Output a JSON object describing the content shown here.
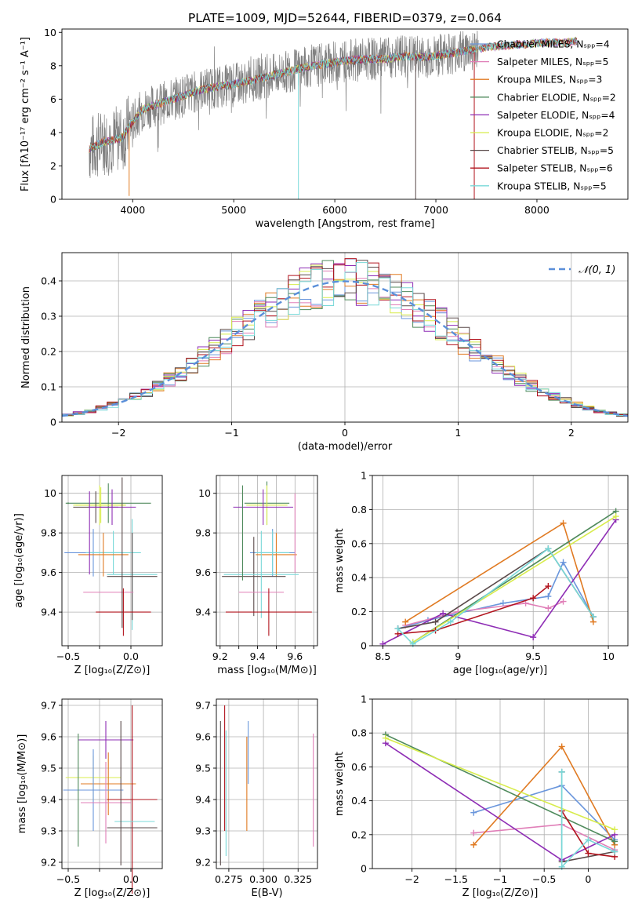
{
  "title": "PLATE=1009, MJD=52644, FIBERID=0379, z=0.064",
  "colors": [
    "#6a96dc",
    "#e07fb8",
    "#e07a22",
    "#4f8a5c",
    "#8e2db5",
    "#d8ec4c",
    "#5a4a4a",
    "#b2141e",
    "#78d8d8"
  ],
  "legend": [
    "Chabrier MILES, Nₛₚₚ=4",
    "Salpeter MILES, Nₛₚₚ=5",
    "Kroupa MILES, Nₛₚₚ=3",
    "Chabrier ELODIE, Nₛₚₚ=2",
    "Salpeter ELODIE, Nₛₚₚ=4",
    "Kroupa ELODIE, Nₛₚₚ=2",
    "Chabrier STELIB, Nₛₚₚ=5",
    "Salpeter STELIB, Nₛₚₚ=6",
    "Kroupa STELIB, Nₛₚₚ=5"
  ],
  "chart_data": [
    {
      "id": "spectrum",
      "type": "line",
      "title": "PLATE=1009, MJD=52644, FIBERID=0379, z=0.064",
      "xlabel": "wavelength [Angstrom, rest frame]",
      "ylabel": "Flux [fλ10⁻¹⁷ erg cm⁻² s⁻¹ A⁻¹]",
      "xlim": [
        3300,
        8900
      ],
      "ylim": [
        0,
        10.2
      ],
      "xticks": [
        4000,
        5000,
        6000,
        7000,
        8000
      ],
      "yticks": [
        0,
        2,
        4,
        6,
        8,
        10
      ],
      "data_color": "#808080",
      "continuum": [
        [
          3570,
          3.0
        ],
        [
          3700,
          3.4
        ],
        [
          3900,
          3.7
        ],
        [
          3960,
          4.3
        ],
        [
          4100,
          5.4
        ],
        [
          4300,
          5.8
        ],
        [
          4500,
          6.2
        ],
        [
          4700,
          6.6
        ],
        [
          4900,
          6.8
        ],
        [
          5100,
          7.0
        ],
        [
          5300,
          7.3
        ],
        [
          5500,
          7.6
        ],
        [
          5700,
          7.9
        ],
        [
          5900,
          8.1
        ],
        [
          6100,
          8.3
        ],
        [
          6300,
          8.4
        ],
        [
          6500,
          8.4
        ],
        [
          6700,
          8.6
        ],
        [
          6900,
          8.5
        ],
        [
          7100,
          8.7
        ],
        [
          7300,
          8.9
        ],
        [
          7500,
          9.1
        ],
        [
          7700,
          9.2
        ],
        [
          7900,
          9.3
        ],
        [
          8100,
          9.4
        ],
        [
          8300,
          9.4
        ],
        [
          8400,
          9.5
        ]
      ],
      "data_range": [
        3570,
        7420
      ],
      "model_range": [
        3570,
        8400
      ],
      "legend_position": "right"
    },
    {
      "id": "residuals",
      "type": "histogram",
      "xlabel": "(data-model)/error",
      "ylabel": "Normed distribution",
      "xlim": [
        -2.5,
        2.5
      ],
      "ylim": [
        0,
        0.48
      ],
      "xticks": [
        -2,
        -1,
        0,
        1,
        2
      ],
      "yticks": [
        0.0,
        0.1,
        0.2,
        0.3,
        0.4
      ],
      "bin_width": 0.1,
      "reference_curve": "𝒩(0, 1)",
      "reference_color": "#5b8fd9",
      "legend_position": "top-right"
    },
    {
      "id": "age-vs-z",
      "type": "errorbar",
      "xlabel": "Z [log₁₀(Z/Z⊙)]",
      "ylabel": "age  [log₁₀(age/yr)]",
      "xlim": [
        -0.55,
        0.25
      ],
      "ylim": [
        9.23,
        10.09
      ],
      "xticks": [
        -0.5,
        -0.25,
        0.0
      ],
      "xticklabels": [
        "−0.5",
        "",
        "0.0"
      ],
      "yticks": [
        9.4,
        9.6,
        9.8,
        10.0
      ],
      "points": [
        {
          "x": -0.5,
          "y": 9.95,
          "ex": 0.0,
          "ey": 0.0,
          "c": 3
        },
        {
          "x": -0.18,
          "y": 9.95,
          "ex": 0.34,
          "ey": 0.1,
          "c": 3
        },
        {
          "x": -0.24,
          "y": 9.94,
          "ex": 0.2,
          "ey": 0.09,
          "c": 5
        },
        {
          "x": -0.25,
          "y": 9.94,
          "ex": 0.21,
          "ey": 0.1,
          "c": 5
        },
        {
          "x": -0.28,
          "y": 9.93,
          "ex": 0.18,
          "ey": 0.08,
          "c": 6
        },
        {
          "x": -0.15,
          "y": 9.93,
          "ex": 0.19,
          "ey": 0.09,
          "c": 4
        },
        {
          "x": -0.3,
          "y": 9.7,
          "ex": 0.23,
          "ey": 0.12,
          "c": 0
        },
        {
          "x": -0.14,
          "y": 9.7,
          "ex": 0.22,
          "ey": 0.11,
          "c": 8
        },
        {
          "x": -0.22,
          "y": 9.69,
          "ex": 0.2,
          "ey": 0.11,
          "c": 2
        },
        {
          "x": 0.01,
          "y": 9.59,
          "ex": 0.2,
          "ey": 0.28,
          "c": 8
        },
        {
          "x": 0.01,
          "y": 9.58,
          "ex": 0.2,
          "ey": 0.22,
          "c": 6
        },
        {
          "x": -0.18,
          "y": 9.5,
          "ex": 0.2,
          "ey": 0.0,
          "c": 1
        },
        {
          "x": -0.06,
          "y": 9.4,
          "ex": 0.22,
          "ey": 0.12,
          "c": 7
        },
        {
          "x": -0.33,
          "y": 9.8,
          "ex": 0.0,
          "ey": 0.21,
          "c": 4
        },
        {
          "x": -0.07,
          "y": 9.7,
          "ex": 0.0,
          "ey": 0.38,
          "c": 6
        }
      ]
    },
    {
      "id": "age-vs-mass",
      "type": "errorbar",
      "xlabel": "mass [log₁₀(M/M⊙)]",
      "ylabel": "",
      "xlim": [
        9.18,
        9.72
      ],
      "ylim": [
        9.23,
        10.09
      ],
      "xticks": [
        9.2,
        9.3,
        9.4,
        9.5,
        9.6,
        9.7
      ],
      "xticklabels": [
        "9.2",
        "",
        "9.4",
        "",
        "9.6",
        ""
      ],
      "yticks": [
        9.4,
        9.6,
        9.8,
        10.0
      ],
      "points": [
        {
          "x": 9.45,
          "y": 9.95,
          "ex": 0.12,
          "ey": 0.11,
          "c": 3
        },
        {
          "x": 9.45,
          "y": 9.94,
          "ex": 0.11,
          "ey": 0.1,
          "c": 5
        },
        {
          "x": 9.43,
          "y": 9.93,
          "ex": 0.16,
          "ey": 0.09,
          "c": 4
        },
        {
          "x": 9.48,
          "y": 9.7,
          "ex": 0.12,
          "ey": 0.12,
          "c": 0
        },
        {
          "x": 9.5,
          "y": 9.69,
          "ex": 0.11,
          "ey": 0.11,
          "c": 2
        },
        {
          "x": 9.48,
          "y": 9.7,
          "ex": 0.09,
          "ey": 0.11,
          "c": 8
        },
        {
          "x": 9.38,
          "y": 9.58,
          "ex": 0.17,
          "ey": 0.2,
          "c": 6
        },
        {
          "x": 9.42,
          "y": 9.59,
          "ex": 0.2,
          "ey": 0.22,
          "c": 8
        },
        {
          "x": 9.42,
          "y": 9.5,
          "ex": 0.12,
          "ey": 0.0,
          "c": 1
        },
        {
          "x": 9.46,
          "y": 9.4,
          "ex": 0.23,
          "ey": 0.12,
          "c": 7
        },
        {
          "x": 9.32,
          "y": 9.8,
          "ex": 0.0,
          "ey": 0.24,
          "c": 3
        },
        {
          "x": 9.6,
          "y": 9.8,
          "ex": 0.0,
          "ey": 0.2,
          "c": 1
        }
      ]
    },
    {
      "id": "weight-vs-age",
      "type": "line",
      "xlabel": "age  [log₁₀(age/yr)]",
      "ylabel": "mass weight",
      "xlim": [
        8.43,
        10.13
      ],
      "ylim": [
        0,
        1.0
      ],
      "xticks": [
        8.5,
        9.0,
        9.5,
        10.0
      ],
      "yticks": [
        0.0,
        0.2,
        0.4,
        0.6,
        0.8,
        1.0
      ],
      "series": [
        {
          "c": 0,
          "points": [
            [
              8.6,
              0.1
            ],
            [
              8.8,
              0.15
            ],
            [
              9.3,
              0.25
            ],
            [
              9.6,
              0.29
            ],
            [
              9.7,
              0.49
            ],
            [
              9.9,
              0.17
            ]
          ]
        },
        {
          "c": 1,
          "points": [
            [
              8.65,
              0.12
            ],
            [
              9.0,
              0.2
            ],
            [
              9.45,
              0.25
            ],
            [
              9.6,
              0.22
            ],
            [
              9.7,
              0.26
            ]
          ]
        },
        {
          "c": 2,
          "points": [
            [
              8.65,
              0.14
            ],
            [
              9.7,
              0.72
            ],
            [
              9.9,
              0.14
            ]
          ]
        },
        {
          "c": 3,
          "points": [
            [
              8.7,
              0.02
            ],
            [
              10.05,
              0.79
            ]
          ]
        },
        {
          "c": 4,
          "points": [
            [
              8.5,
              0.01
            ],
            [
              8.9,
              0.19
            ],
            [
              9.5,
              0.05
            ],
            [
              10.05,
              0.74
            ]
          ]
        },
        {
          "c": 5,
          "points": [
            [
              8.7,
              0.02
            ],
            [
              10.05,
              0.76
            ]
          ]
        },
        {
          "c": 6,
          "points": [
            [
              8.6,
              0.1
            ],
            [
              8.85,
              0.14
            ],
            [
              9.6,
              0.57
            ],
            [
              9.9,
              0.17
            ]
          ]
        },
        {
          "c": 7,
          "points": [
            [
              8.6,
              0.07
            ],
            [
              8.85,
              0.09
            ],
            [
              9.5,
              0.28
            ],
            [
              9.6,
              0.35
            ]
          ]
        },
        {
          "c": 8,
          "points": [
            [
              8.6,
              0.1
            ],
            [
              8.7,
              0.01
            ],
            [
              8.95,
              0.14
            ],
            [
              9.6,
              0.57
            ],
            [
              9.9,
              0.17
            ]
          ]
        }
      ]
    },
    {
      "id": "mass-vs-z",
      "type": "errorbar",
      "xlabel": "Z [log₁₀(Z/Z⊙)]",
      "ylabel": "mass [log₁₀(M/M⊙)]",
      "xlim": [
        -0.55,
        0.25
      ],
      "ylim": [
        9.18,
        9.72
      ],
      "xticks": [
        -0.5,
        -0.25,
        0.0
      ],
      "xticklabels": [
        "−0.5",
        "",
        "0.0"
      ],
      "yticks": [
        9.2,
        9.3,
        9.4,
        9.5,
        9.6,
        9.7
      ],
      "points": [
        {
          "x": -0.2,
          "y": 9.59,
          "ex": 0.22,
          "ey": 0.06,
          "c": 4
        },
        {
          "x": -0.3,
          "y": 9.47,
          "ex": 0.22,
          "ey": 0.07,
          "c": 5
        },
        {
          "x": -0.18,
          "y": 9.45,
          "ex": 0.22,
          "ey": 0.1,
          "c": 2
        },
        {
          "x": -0.3,
          "y": 9.43,
          "ex": 0.24,
          "ey": 0.13,
          "c": 0
        },
        {
          "x": -0.2,
          "y": 9.39,
          "ex": 0.2,
          "ey": 0.13,
          "c": 1
        },
        {
          "x": 0.01,
          "y": 9.4,
          "ex": 0.2,
          "ey": 0.3,
          "c": 7
        },
        {
          "x": 0.03,
          "y": 9.33,
          "ex": 0.16,
          "ey": 0.0,
          "c": 8
        },
        {
          "x": 0.01,
          "y": 9.31,
          "ex": 0.2,
          "ey": 0.0,
          "c": 6
        },
        {
          "x": -0.42,
          "y": 9.43,
          "ex": 0.0,
          "ey": 0.18,
          "c": 3
        },
        {
          "x": -0.08,
          "y": 9.42,
          "ex": 0.0,
          "ey": 0.23,
          "c": 6
        }
      ]
    },
    {
      "id": "mass-vs-ebv",
      "type": "errorbar",
      "xlabel": "E(B-V)",
      "ylabel": "",
      "xlim": [
        0.266,
        0.339
      ],
      "ylim": [
        9.18,
        9.72
      ],
      "xticks": [
        0.275,
        0.3,
        0.325
      ],
      "xticklabels": [
        "0.275",
        "0.300",
        "0.325"
      ],
      "yticks": [
        9.2,
        9.3,
        9.4,
        9.5,
        9.6,
        9.7
      ],
      "points": [
        {
          "x": 0.269,
          "y": 9.42,
          "ex": 0,
          "ey": 0.23,
          "c": 6
        },
        {
          "x": 0.272,
          "y": 9.5,
          "ex": 0,
          "ey": 0.2,
          "c": 7
        },
        {
          "x": 0.273,
          "y": 9.42,
          "ex": 0,
          "ey": 0.2,
          "c": 8
        },
        {
          "x": 0.288,
          "y": 9.45,
          "ex": 0,
          "ey": 0.15,
          "c": 2
        },
        {
          "x": 0.289,
          "y": 9.55,
          "ex": 0,
          "ey": 0.1,
          "c": 0
        },
        {
          "x": 0.336,
          "y": 9.43,
          "ex": 0,
          "ey": 0.18,
          "c": 1
        }
      ]
    },
    {
      "id": "weight-vs-z",
      "type": "line",
      "xlabel": "Z [log₁₀(Z/Z⊙)]",
      "ylabel": "mass weight",
      "xlim": [
        -2.45,
        0.45
      ],
      "ylim": [
        0,
        1.0
      ],
      "xticks": [
        -2.0,
        -1.5,
        -1.0,
        -0.5,
        0.0
      ],
      "yticks": [
        0.0,
        0.2,
        0.4,
        0.6,
        0.8,
        1.0
      ],
      "series": [
        {
          "c": 0,
          "points": [
            [
              -1.3,
              0.33
            ],
            [
              -0.3,
              0.49
            ],
            [
              0.3,
              0.17
            ]
          ]
        },
        {
          "c": 1,
          "points": [
            [
              -1.3,
              0.21
            ],
            [
              -0.3,
              0.26
            ],
            [
              0.3,
              0.11
            ]
          ]
        },
        {
          "c": 2,
          "points": [
            [
              -1.3,
              0.14
            ],
            [
              -0.3,
              0.72
            ],
            [
              0.3,
              0.14
            ]
          ]
        },
        {
          "c": 3,
          "points": [
            [
              -2.3,
              0.79
            ],
            [
              0.3,
              0.16
            ]
          ]
        },
        {
          "c": 4,
          "points": [
            [
              -2.3,
              0.74
            ],
            [
              -0.3,
              0.05
            ],
            [
              0.3,
              0.2
            ]
          ]
        },
        {
          "c": 5,
          "points": [
            [
              -2.3,
              0.77
            ],
            [
              0.3,
              0.23
            ]
          ]
        },
        {
          "c": 6,
          "points": [
            [
              -0.3,
              0.57
            ],
            [
              -0.3,
              0.04
            ],
            [
              0.3,
              0.1
            ]
          ]
        },
        {
          "c": 7,
          "points": [
            [
              -0.3,
              0.34
            ],
            [
              0.0,
              0.09
            ],
            [
              0.3,
              0.07
            ]
          ]
        },
        {
          "c": 8,
          "points": [
            [
              -0.3,
              0.57
            ],
            [
              -0.3,
              0.01
            ],
            [
              0.0,
              0.17
            ],
            [
              0.3,
              0.1
            ]
          ]
        }
      ]
    }
  ]
}
